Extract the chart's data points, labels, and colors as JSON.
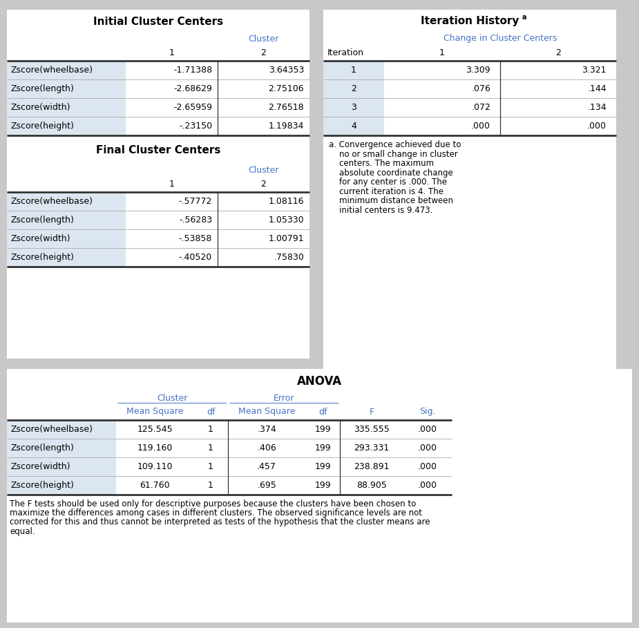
{
  "bg_color": "#c8c8c8",
  "table_bg": "#ffffff",
  "header_blue": "#4472c4",
  "row_shade": "#dce6f1",
  "border_dark": "#333333",
  "border_light": "#aaaaaa",
  "icc_title": "Initial Cluster Centers",
  "icc_rows": [
    "Zscore(wheelbase)",
    "Zscore(length)",
    "Zscore(width)",
    "Zscore(height)"
  ],
  "icc_data": [
    [
      "-1.71388",
      "3.64353"
    ],
    [
      "-2.68629",
      "2.75106"
    ],
    [
      "-2.65959",
      "2.76518"
    ],
    [
      "-.23150",
      "1.19834"
    ]
  ],
  "fcc_title": "Final Cluster Centers",
  "fcc_rows": [
    "Zscore(wheelbase)",
    "Zscore(length)",
    "Zscore(width)",
    "Zscore(height)"
  ],
  "fcc_data": [
    [
      "-.57772",
      "1.08116"
    ],
    [
      "-.56283",
      "1.05330"
    ],
    [
      "-.53858",
      "1.00791"
    ],
    [
      "-.40520",
      ".75830"
    ]
  ],
  "ih_title": "Iteration History",
  "ih_superscript": "a",
  "ih_rows": [
    "1",
    "2",
    "3",
    "4"
  ],
  "ih_data": [
    [
      "3.309",
      "3.321"
    ],
    [
      ".076",
      ".144"
    ],
    [
      ".072",
      ".134"
    ],
    [
      ".000",
      ".000"
    ]
  ],
  "ih_footnote_lines": [
    "a. Convergence achieved due to",
    "    no or small change in cluster",
    "    centers. The maximum",
    "    absolute coordinate change",
    "    for any center is .000. The",
    "    current iteration is 4. The",
    "    minimum distance between",
    "    initial centers is 9.473."
  ],
  "anova_title": "ANOVA",
  "anova_rows": [
    "Zscore(wheelbase)",
    "Zscore(length)",
    "Zscore(width)",
    "Zscore(height)"
  ],
  "anova_data": [
    [
      "125.545",
      "1",
      ".374",
      "199",
      "335.555",
      ".000"
    ],
    [
      "119.160",
      "1",
      ".406",
      "199",
      "293.331",
      ".000"
    ],
    [
      "109.110",
      "1",
      ".457",
      "199",
      "238.891",
      ".000"
    ],
    [
      "61.760",
      "1",
      ".695",
      "199",
      "88.905",
      ".000"
    ]
  ],
  "anova_footnote_lines": [
    "The F tests should be used only for descriptive purposes because the clusters have been chosen to",
    "maximize the differences among cases in different clusters. The observed significance levels are not",
    "corrected for this and thus cannot be interpreted as tests of the hypothesis that the cluster means are",
    "equal."
  ]
}
